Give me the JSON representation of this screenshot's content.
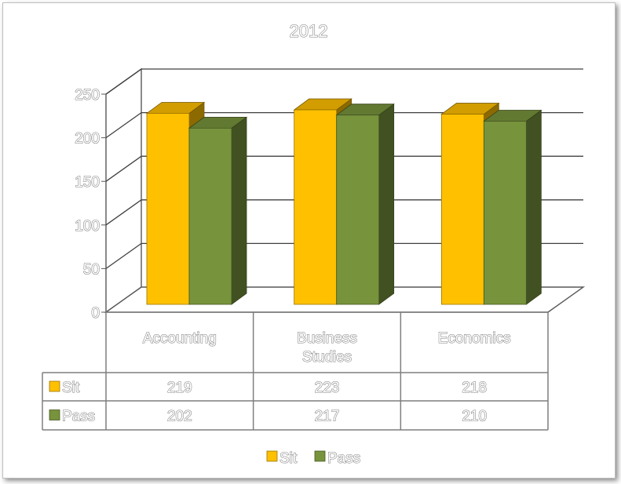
{
  "chart_data": {
    "type": "bar",
    "title": "2012",
    "categories": [
      "Accounting",
      "Business Studies",
      "Economics"
    ],
    "series": [
      {
        "name": "Sit",
        "values": [
          219,
          223,
          218
        ],
        "color": "#ffc000"
      },
      {
        "name": "Pass",
        "values": [
          202,
          217,
          210
        ],
        "color": "#77933c"
      }
    ],
    "ylim": [
      0,
      250
    ],
    "yticks": [
      0,
      50,
      100,
      150,
      200,
      250
    ],
    "grid": true,
    "legend": "bottom",
    "data_table": true
  }
}
